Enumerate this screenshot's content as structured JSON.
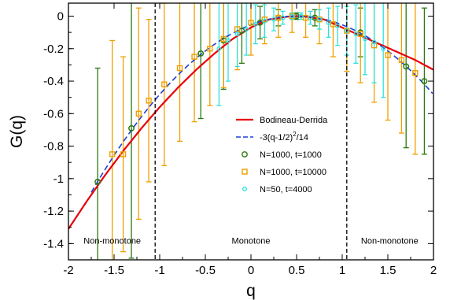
{
  "chart_data": {
    "type": "line",
    "title": "",
    "xlabel": "q",
    "ylabel": "G(q)",
    "xlim": [
      -2,
      2
    ],
    "ylim": [
      -1.5,
      0.08
    ],
    "xticks": [
      -2,
      -1.5,
      -1,
      -0.5,
      0,
      0.5,
      1,
      1.5,
      2
    ],
    "xtick_labels": [
      "-2",
      "-1.5",
      "-1",
      "-0.5",
      "0",
      "0.5",
      "1",
      "1.5",
      "2"
    ],
    "yticks": [
      0,
      -0.2,
      -0.4,
      -0.6,
      -0.8,
      -1,
      -1.2,
      -1.4
    ],
    "ytick_labels": [
      "0",
      "-0.2",
      "-0.4",
      "-0.6",
      "-0.8",
      "-1",
      "-1.2",
      "-1.4"
    ],
    "grid": false,
    "legend_position": "right",
    "vlines": [
      -1.05,
      1.05
    ],
    "region_labels": [
      {
        "text": "Non-monotone",
        "x": -1.52,
        "y": -1.4
      },
      {
        "text": "Monotone",
        "x": 0.0,
        "y": -1.4
      },
      {
        "text": "Non-monotone",
        "x": 1.52,
        "y": -1.4
      }
    ],
    "series": [
      {
        "name": "Bodineau-Derrida",
        "kind": "line",
        "color": "#e8000b",
        "x": [
          -2.0,
          -1.8,
          -1.6,
          -1.4,
          -1.2,
          -1.0,
          -0.8,
          -0.6,
          -0.4,
          -0.2,
          0.0,
          0.2,
          0.4,
          0.5,
          0.6,
          0.8,
          1.0,
          1.2,
          1.4,
          1.6,
          1.8,
          2.0
        ],
        "y": [
          -1.31,
          -1.14,
          -0.98,
          -0.83,
          -0.69,
          -0.56,
          -0.44,
          -0.33,
          -0.23,
          -0.14,
          -0.07,
          -0.02,
          -0.003,
          0.0,
          -0.003,
          -0.02,
          -0.07,
          -0.12,
          -0.17,
          -0.22,
          -0.27,
          -0.33
        ]
      },
      {
        "name": "-3(q-1/2)^2/14",
        "kind": "dashed",
        "color": "#1f3fd6",
        "formula": "-3*(q-0.5)^2/14",
        "x": [
          -1.7,
          -1.5,
          -1.3,
          -1.1,
          -0.9,
          -0.7,
          -0.5,
          -0.3,
          -0.1,
          0.1,
          0.3,
          0.5,
          0.7,
          0.9,
          1.1,
          1.3,
          1.5,
          1.7,
          1.9,
          2.0
        ],
        "y": [
          -1.037,
          -0.857,
          -0.694,
          -0.549,
          -0.42,
          -0.309,
          -0.214,
          -0.137,
          -0.077,
          -0.034,
          -0.009,
          0.0,
          -0.009,
          -0.034,
          -0.077,
          -0.137,
          -0.214,
          -0.309,
          -0.42,
          -0.482
        ]
      },
      {
        "name": "N=1000, t=1000",
        "kind": "points",
        "marker": "circle",
        "color": "#2a7a10",
        "x": [
          -1.68,
          -1.31,
          -0.55,
          -0.3,
          -0.1,
          0.1,
          0.3,
          0.5,
          0.7,
          1.2,
          1.7,
          1.9
        ],
        "y": [
          -1.02,
          -0.69,
          -0.23,
          -0.15,
          -0.09,
          -0.04,
          -0.01,
          0.0,
          -0.01,
          -0.1,
          -0.31,
          -0.4
        ],
        "err": [
          0.7,
          0.8,
          0.4,
          0.3,
          0.2,
          0.1,
          0.05,
          0.02,
          0.05,
          0.15,
          0.5,
          0.45
        ]
      },
      {
        "name": "N=1000, t=10000",
        "kind": "points",
        "marker": "square",
        "color": "#f0a000",
        "x": [
          -1.52,
          -1.4,
          -1.23,
          -1.12,
          -0.95,
          -0.78,
          -0.62,
          -0.45,
          -0.3,
          -0.15,
          0.0,
          0.15,
          0.3,
          0.45,
          0.6,
          0.75,
          0.9,
          1.05,
          1.2,
          1.35,
          1.5,
          1.65,
          1.8
        ],
        "y": [
          -0.85,
          -0.85,
          -0.6,
          -0.52,
          -0.42,
          -0.32,
          -0.25,
          -0.2,
          -0.14,
          -0.08,
          -0.04,
          -0.02,
          -0.01,
          0.0,
          -0.01,
          -0.02,
          -0.05,
          -0.09,
          -0.11,
          -0.18,
          -0.24,
          -0.27,
          -0.35
        ],
        "err": [
          0.7,
          0.6,
          0.65,
          0.5,
          0.5,
          0.45,
          0.4,
          0.35,
          0.3,
          0.25,
          0.2,
          0.15,
          0.12,
          0.1,
          0.12,
          0.15,
          0.2,
          0.25,
          0.3,
          0.35,
          0.4,
          0.45,
          0.5
        ]
      },
      {
        "name": "N=50, t=4000",
        "kind": "points",
        "marker": "circle-small",
        "color": "#30e0e0",
        "x": [
          -0.35,
          -0.25,
          -0.15,
          -0.05,
          0.05,
          0.15,
          0.25,
          0.35,
          0.45,
          0.55,
          0.65,
          0.75,
          0.85,
          0.95,
          1.05,
          1.15,
          1.25,
          1.35,
          1.45
        ],
        "y": [
          -0.2,
          -0.15,
          -0.11,
          -0.08,
          -0.05,
          -0.03,
          -0.02,
          -0.01,
          0.0,
          0.0,
          -0.01,
          -0.02,
          -0.04,
          -0.06,
          -0.09,
          -0.11,
          -0.14,
          -0.16,
          -0.2
        ],
        "err": [
          0.35,
          0.25,
          0.2,
          0.16,
          0.12,
          0.1,
          0.07,
          0.04,
          0.02,
          0.02,
          0.04,
          0.06,
          0.09,
          0.12,
          0.15,
          0.18,
          0.22,
          0.25,
          0.3
        ]
      }
    ]
  }
}
